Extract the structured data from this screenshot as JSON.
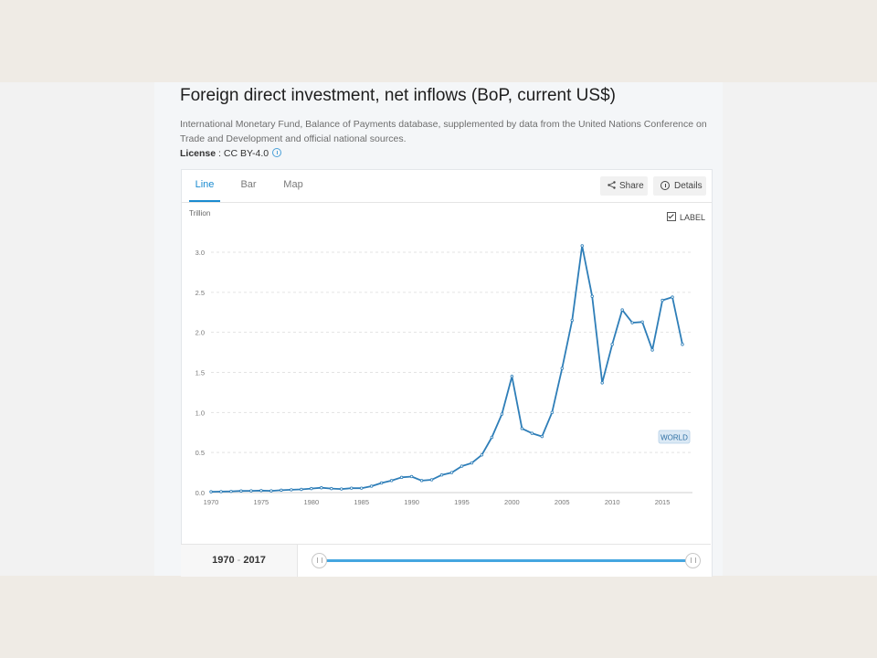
{
  "header": {
    "title": "Foreign direct investment, net inflows (BoP, current US$)",
    "source": "International Monetary Fund, Balance of Payments database, supplemented by data from the United Nations Conference on Trade and Development and official national sources.",
    "license_label": "License",
    "license_sep": " : ",
    "license_value": "CC BY-4.0"
  },
  "tabs": [
    {
      "label": "Line",
      "active": true
    },
    {
      "label": "Bar",
      "active": false
    },
    {
      "label": "Map",
      "active": false
    }
  ],
  "actions": {
    "share_label": "Share",
    "details_label": "Details"
  },
  "label_toggle": {
    "label": "LABEL",
    "checked": true
  },
  "range": {
    "start": "1970",
    "separator": " - ",
    "end": "2017"
  },
  "colors": {
    "accent": "#1a8bd0",
    "series": "#2e7eb8",
    "slider": "#45a6e0"
  },
  "chart_data": {
    "type": "line",
    "ylabel": "Trillion",
    "xlim": [
      1970,
      2018
    ],
    "ylim": [
      0,
      3.0
    ],
    "x_ticks": [
      1970,
      1975,
      1980,
      1985,
      1990,
      1995,
      2000,
      2005,
      2010,
      2015
    ],
    "y_ticks": [
      "0.0",
      "0.5",
      "1.0",
      "1.5",
      "2.0",
      "2.5",
      "3.0"
    ],
    "grid": true,
    "series": [
      {
        "name": "WORLD",
        "x": [
          1970,
          1971,
          1972,
          1973,
          1974,
          1975,
          1976,
          1977,
          1978,
          1979,
          1980,
          1981,
          1982,
          1983,
          1984,
          1985,
          1986,
          1987,
          1988,
          1989,
          1990,
          1991,
          1992,
          1993,
          1994,
          1995,
          1996,
          1997,
          1998,
          1999,
          2000,
          2001,
          2002,
          2003,
          2004,
          2005,
          2006,
          2007,
          2008,
          2009,
          2010,
          2011,
          2012,
          2013,
          2014,
          2015,
          2016,
          2017
        ],
        "values": [
          0.01,
          0.012,
          0.015,
          0.02,
          0.022,
          0.025,
          0.022,
          0.03,
          0.035,
          0.04,
          0.05,
          0.06,
          0.05,
          0.045,
          0.055,
          0.055,
          0.08,
          0.12,
          0.15,
          0.19,
          0.2,
          0.15,
          0.16,
          0.22,
          0.25,
          0.33,
          0.37,
          0.47,
          0.69,
          0.98,
          1.45,
          0.8,
          0.74,
          0.7,
          1.0,
          1.55,
          2.15,
          3.08,
          2.45,
          1.37,
          1.85,
          2.28,
          2.12,
          2.13,
          1.78,
          2.4,
          2.44,
          1.85
        ]
      }
    ]
  }
}
